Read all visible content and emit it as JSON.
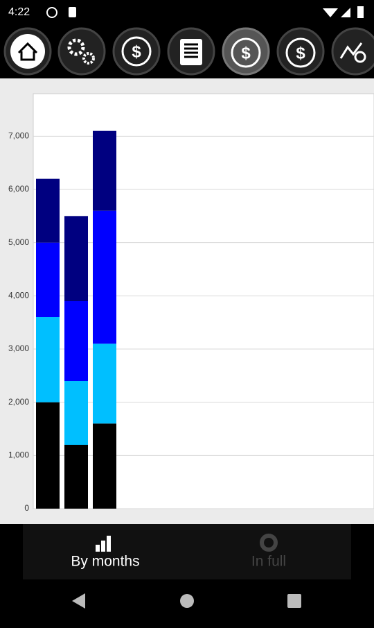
{
  "status_bar": {
    "time": "4:22"
  },
  "chart_data": {
    "type": "bar",
    "stacked": true,
    "categories": [
      null,
      null,
      null
    ],
    "series": [
      {
        "color": "#000000",
        "values": [
          2000,
          1200,
          1600
        ]
      },
      {
        "color": "#00bfff",
        "values": [
          1600,
          1200,
          1500
        ]
      },
      {
        "color": "#0000ff",
        "values": [
          1400,
          1500,
          2500
        ]
      },
      {
        "color": "#000080",
        "values": [
          1200,
          1600,
          1500
        ]
      }
    ],
    "ylim": [
      0,
      7800
    ],
    "yticks": [
      0,
      {
        "value": 1000,
        "label": "1,000"
      },
      {
        "value": 2000,
        "label": "2,000"
      },
      {
        "value": 3000,
        "label": "3,000"
      },
      {
        "value": 4000,
        "label": "4,000"
      },
      {
        "value": 5000,
        "label": "5,000"
      },
      {
        "value": 6000,
        "label": "6,000"
      },
      {
        "value": 7000,
        "label": "7,000"
      }
    ],
    "grid": true
  },
  "tabs": [
    {
      "label": "By months"
    },
    {
      "label": "In full"
    }
  ]
}
